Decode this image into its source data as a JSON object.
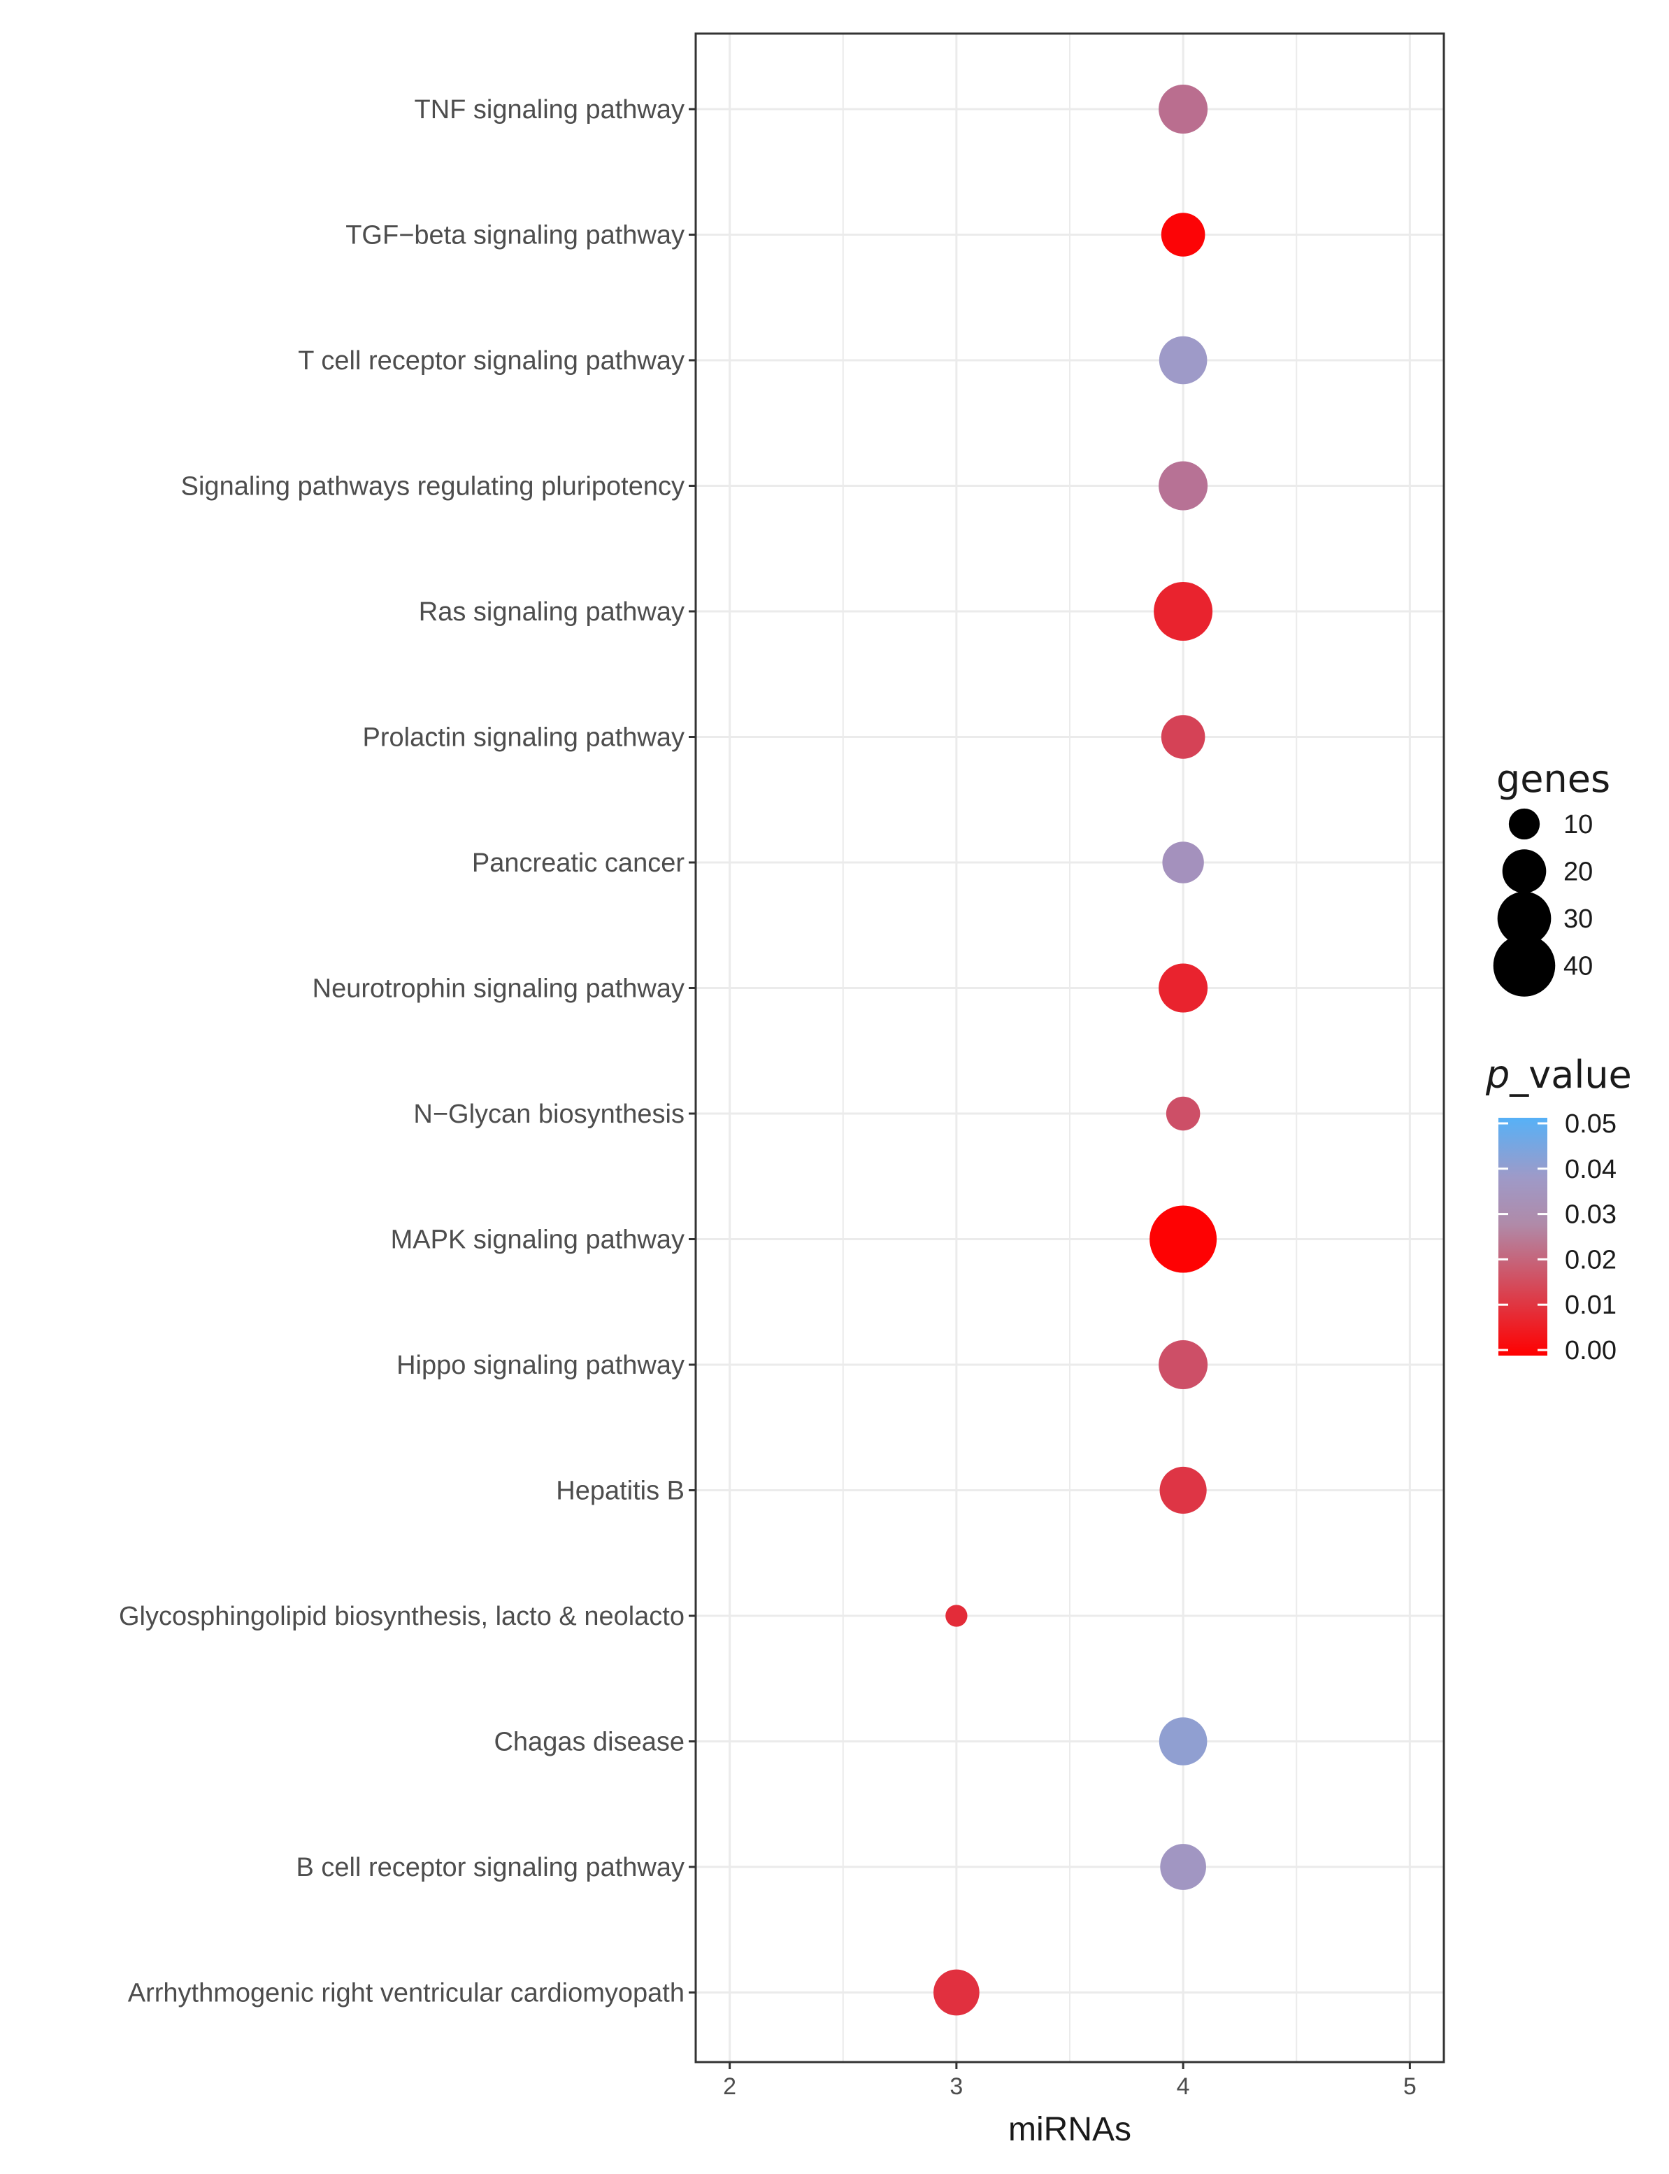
{
  "chart_data": {
    "type": "scatter",
    "xlabel": "miRNAs",
    "x_ticks": [
      2,
      3,
      4,
      5
    ],
    "xlim": [
      1.85,
      5.15
    ],
    "categories": [
      "TNF signaling pathway",
      "TGF−beta signaling pathway",
      "T cell receptor signaling pathway",
      "Signaling pathways regulating pluripotency",
      "Ras signaling pathway",
      "Prolactin signaling pathway",
      "Pancreatic cancer",
      "Neurotrophin signaling pathway",
      "N−Glycan biosynthesis",
      "MAPK signaling pathway",
      "Hippo signaling pathway",
      "Hepatitis B",
      "Glycosphingolipid biosynthesis, lacto & neolacto",
      "Chagas disease",
      "B cell receptor signaling pathway",
      "Arrhythmogenic right ventricular cardiomyopath"
    ],
    "points": [
      {
        "category": "TNF signaling pathway",
        "miRNAs": 4,
        "genes": 25,
        "p_value": 0.025
      },
      {
        "category": "TGF−beta signaling pathway",
        "miRNAs": 4,
        "genes": 20,
        "p_value": 0.001
      },
      {
        "category": "T cell receptor signaling pathway",
        "miRNAs": 4,
        "genes": 24,
        "p_value": 0.035
      },
      {
        "category": "Signaling pathways regulating pluripotency",
        "miRNAs": 4,
        "genes": 25,
        "p_value": 0.026
      },
      {
        "category": "Ras signaling pathway",
        "miRNAs": 4,
        "genes": 36,
        "p_value": 0.008
      },
      {
        "category": "Prolactin signaling pathway",
        "miRNAs": 4,
        "genes": 20,
        "p_value": 0.015
      },
      {
        "category": "Pancreatic cancer",
        "miRNAs": 4,
        "genes": 18,
        "p_value": 0.033
      },
      {
        "category": "Neurotrophin signaling pathway",
        "miRNAs": 4,
        "genes": 25,
        "p_value": 0.008
      },
      {
        "category": "N−Glycan biosynthesis",
        "miRNAs": 4,
        "genes": 12,
        "p_value": 0.018
      },
      {
        "category": "MAPK signaling pathway",
        "miRNAs": 4,
        "genes": 47,
        "p_value": 0.0005
      },
      {
        "category": "Hippo signaling pathway",
        "miRNAs": 4,
        "genes": 25,
        "p_value": 0.018
      },
      {
        "category": "Hepatitis B",
        "miRNAs": 4,
        "genes": 23,
        "p_value": 0.012
      },
      {
        "category": "Glycosphingolipid biosynthesis, lacto & neolacto",
        "miRNAs": 3,
        "genes": 5,
        "p_value": 0.01
      },
      {
        "category": "Chagas disease",
        "miRNAs": 4,
        "genes": 24,
        "p_value": 0.038
      },
      {
        "category": "B cell receptor signaling pathway",
        "miRNAs": 4,
        "genes": 22,
        "p_value": 0.034
      },
      {
        "category": "Arrhythmogenic right ventricular cardiomyopath",
        "miRNAs": 3,
        "genes": 22,
        "p_value": 0.011
      }
    ],
    "size_legend": {
      "title": "genes",
      "breaks": [
        10,
        20,
        30,
        40
      ],
      "labels": [
        "10",
        "20",
        "30",
        "40"
      ]
    },
    "color_legend": {
      "title_italic": "p",
      "title_rest": "_value",
      "breaks": [
        0.05,
        0.04,
        0.03,
        0.02,
        0.01,
        0.0
      ],
      "labels": [
        "0.05",
        "0.04",
        "0.03",
        "0.02",
        "0.01",
        "0.00"
      ],
      "low_color": "#ff0000",
      "mid_color": "#9e9ac8",
      "high_color": "#56b1f7",
      "limits": [
        0.0,
        0.05
      ]
    },
    "grid": true,
    "legend_placement": "right",
    "panel_border_color": "#333333",
    "grid_color": "#ebebeb"
  }
}
